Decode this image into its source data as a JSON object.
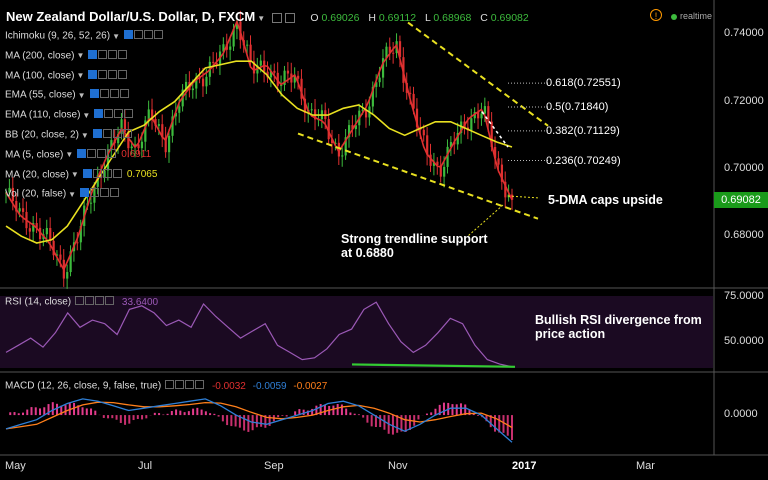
{
  "header": {
    "symbol_title": "New Zealand Dollar/U.S. Dollar, D, FXCM",
    "open_label": "O",
    "open": "0.69026",
    "high_label": "H",
    "high": "0.69112",
    "low_label": "L",
    "low": "0.68968",
    "close_label": "C",
    "close": "0.69082",
    "realtime": "realtime",
    "warning": "!"
  },
  "indicators": [
    {
      "label": "Ichimoku (9, 26, 52, 26)",
      "value": "",
      "color": "#ddd"
    },
    {
      "label": "MA (200, close)",
      "value": "",
      "color": "#ddd"
    },
    {
      "label": "MA (100, close)",
      "value": "",
      "color": "#ddd"
    },
    {
      "label": "EMA (55, close)",
      "value": "",
      "color": "#ddd"
    },
    {
      "label": "EMA (110, close)",
      "value": "",
      "color": "#ddd"
    },
    {
      "label": "BB (20, close, 2)",
      "value": "",
      "color": "#ddd"
    },
    {
      "label": "MA (5, close)",
      "value": "0.6911",
      "color": "#e03030"
    },
    {
      "label": "MA (20, close)",
      "value": "0.7065",
      "color": "#e8e020"
    },
    {
      "label": "Vol (20, false)",
      "value": "",
      "color": "#ddd"
    }
  ],
  "rsi": {
    "label": "RSI (14, close)",
    "value": "33.6400",
    "color": "#9b59b6"
  },
  "macd": {
    "label": "MACD (12, 26, close, 9, false, true)",
    "hist": "-0.0032",
    "macd": "-0.0059",
    "signal": "-0.0027",
    "colors": {
      "hist": "#e03030",
      "macd": "#2f7fd6",
      "signal": "#ff7f1a"
    }
  },
  "annotations": {
    "trendline": "Strong trendline support at 0.6880",
    "dma": "5-DMA caps upside",
    "rsi_div": "Bullish RSI divergence from price action"
  },
  "fib_levels": [
    {
      "label": "0.618(0.72551)",
      "value": 0.72551
    },
    {
      "label": "0.5(0.71840)",
      "value": 0.7184
    },
    {
      "label": "0.382(0.71129)",
      "value": 0.71129
    },
    {
      "label": "0.236(0.70249)",
      "value": 0.70249
    }
  ],
  "price_tag": "0.69082",
  "colors": {
    "background": "#000000",
    "up": "#3dbb3d",
    "down": "#e03030",
    "ma5": "#e03030",
    "ma20": "#e8e020",
    "trend": "#e8e020",
    "rsi": "#9b59b6",
    "divergence": "#33cc33"
  },
  "chart_data": [
    {
      "type": "candlestick",
      "title": "New Zealand Dollar/U.S. Dollar, D, FXCM",
      "x_ticks": [
        "May",
        "Jul",
        "Sep",
        "Nov",
        "2017",
        "Mar"
      ],
      "y_ticks": [
        "0.74000",
        "0.72000",
        "0.70000",
        "0.68000"
      ],
      "ylim": [
        0.667,
        0.749
      ],
      "close_path": [
        [
          "May",
          0.693
        ],
        [
          "May",
          0.686
        ],
        [
          "May",
          0.683
        ],
        [
          "Jun",
          0.678
        ],
        [
          "Jun",
          0.67
        ],
        [
          "Jun",
          0.68
        ],
        [
          "Jun",
          0.694
        ],
        [
          "Jun",
          0.704
        ],
        [
          "Jul",
          0.712
        ],
        [
          "Jul",
          0.706
        ],
        [
          "Jul",
          0.716
        ],
        [
          "Jul",
          0.708
        ],
        [
          "Aug",
          0.72
        ],
        [
          "Aug",
          0.726
        ],
        [
          "Aug",
          0.729
        ],
        [
          "Aug",
          0.734
        ],
        [
          "Sep",
          0.744
        ],
        [
          "Sep",
          0.729
        ],
        [
          "Sep",
          0.731
        ],
        [
          "Sep",
          0.725
        ],
        [
          "Oct",
          0.728
        ],
        [
          "Oct",
          0.716
        ],
        [
          "Oct",
          0.714
        ],
        [
          "Oct",
          0.705
        ],
        [
          "Oct",
          0.712
        ],
        [
          "Nov",
          0.719
        ],
        [
          "Nov",
          0.731
        ],
        [
          "Nov",
          0.737
        ],
        [
          "Nov",
          0.72
        ],
        [
          "Nov",
          0.705
        ],
        [
          "Nov",
          0.7
        ],
        [
          "Dec",
          0.708
        ],
        [
          "Dec",
          0.715
        ],
        [
          "Dec",
          0.718
        ],
        [
          "Dec",
          0.7
        ],
        [
          "Dec",
          0.6908
        ]
      ],
      "ma20_path": [
        0.683,
        0.68,
        0.678,
        0.679,
        0.683,
        0.69,
        0.697,
        0.704,
        0.711,
        0.713,
        0.717,
        0.72,
        0.725,
        0.73,
        0.731,
        0.732,
        0.732,
        0.728,
        0.722,
        0.718,
        0.716,
        0.716,
        0.718,
        0.719,
        0.716,
        0.712,
        0.71,
        0.712,
        0.714,
        0.714,
        0.712,
        0.71,
        0.708,
        0.7065
      ],
      "fib_retracement": [
        0.72551,
        0.7184,
        0.71129,
        0.70249
      ],
      "last_price": 0.69082,
      "trendlines": [
        "upper falling channel",
        "lower support ~0.6880"
      ]
    },
    {
      "type": "line",
      "title": "RSI (14, close)",
      "y_ticks": [
        "75.0000",
        "50.0000"
      ],
      "ylim": [
        37,
        76
      ],
      "values": [
        44,
        48,
        52,
        47,
        55,
        66,
        58,
        62,
        60,
        54,
        68,
        70,
        66,
        59,
        62,
        58,
        71,
        64,
        58,
        52,
        56,
        60,
        48,
        44,
        40,
        41,
        46,
        54,
        57,
        68,
        72,
        60,
        50,
        44,
        48,
        55,
        63,
        60,
        48,
        40,
        37.5,
        36
      ],
      "last": 33.64
    },
    {
      "type": "bar+line",
      "title": "MACD (12, 26, close, 9, false, true)",
      "y_ticks": [
        "0.0000"
      ],
      "ylim": [
        -0.008,
        0.005
      ],
      "macd": [
        -0.003,
        -0.002,
        -0.001,
        0.001,
        0.0025,
        0.0035,
        0.003,
        0.002,
        0.001,
        0.0015,
        0.002,
        0.0025,
        0.003,
        0.0035,
        0.002,
        0.0,
        -0.0015,
        -0.002,
        -0.001,
        0.0,
        0.001,
        0.0025,
        0.003,
        0.002,
        0.0,
        -0.002,
        -0.0035,
        -0.002,
        0.0,
        0.0015,
        0.0015,
        0.0,
        -0.003,
        -0.0059
      ],
      "signal": [
        -0.003,
        -0.0025,
        -0.002,
        -0.0005,
        0.001,
        0.0022,
        0.0028,
        0.0027,
        0.0022,
        0.0018,
        0.0018,
        0.002,
        0.0023,
        0.0027,
        0.0026,
        0.0018,
        0.0006,
        -0.0005,
        -0.0008,
        -0.0005,
        0.0,
        0.001,
        0.0018,
        0.0021,
        0.0015,
        0.0004,
        -0.001,
        -0.0015,
        -0.001,
        -0.0003,
        0.0003,
        0.0004,
        -0.0008,
        -0.0027
      ],
      "last": {
        "hist": -0.0032,
        "macd": -0.0059,
        "signal": -0.0027
      }
    }
  ]
}
